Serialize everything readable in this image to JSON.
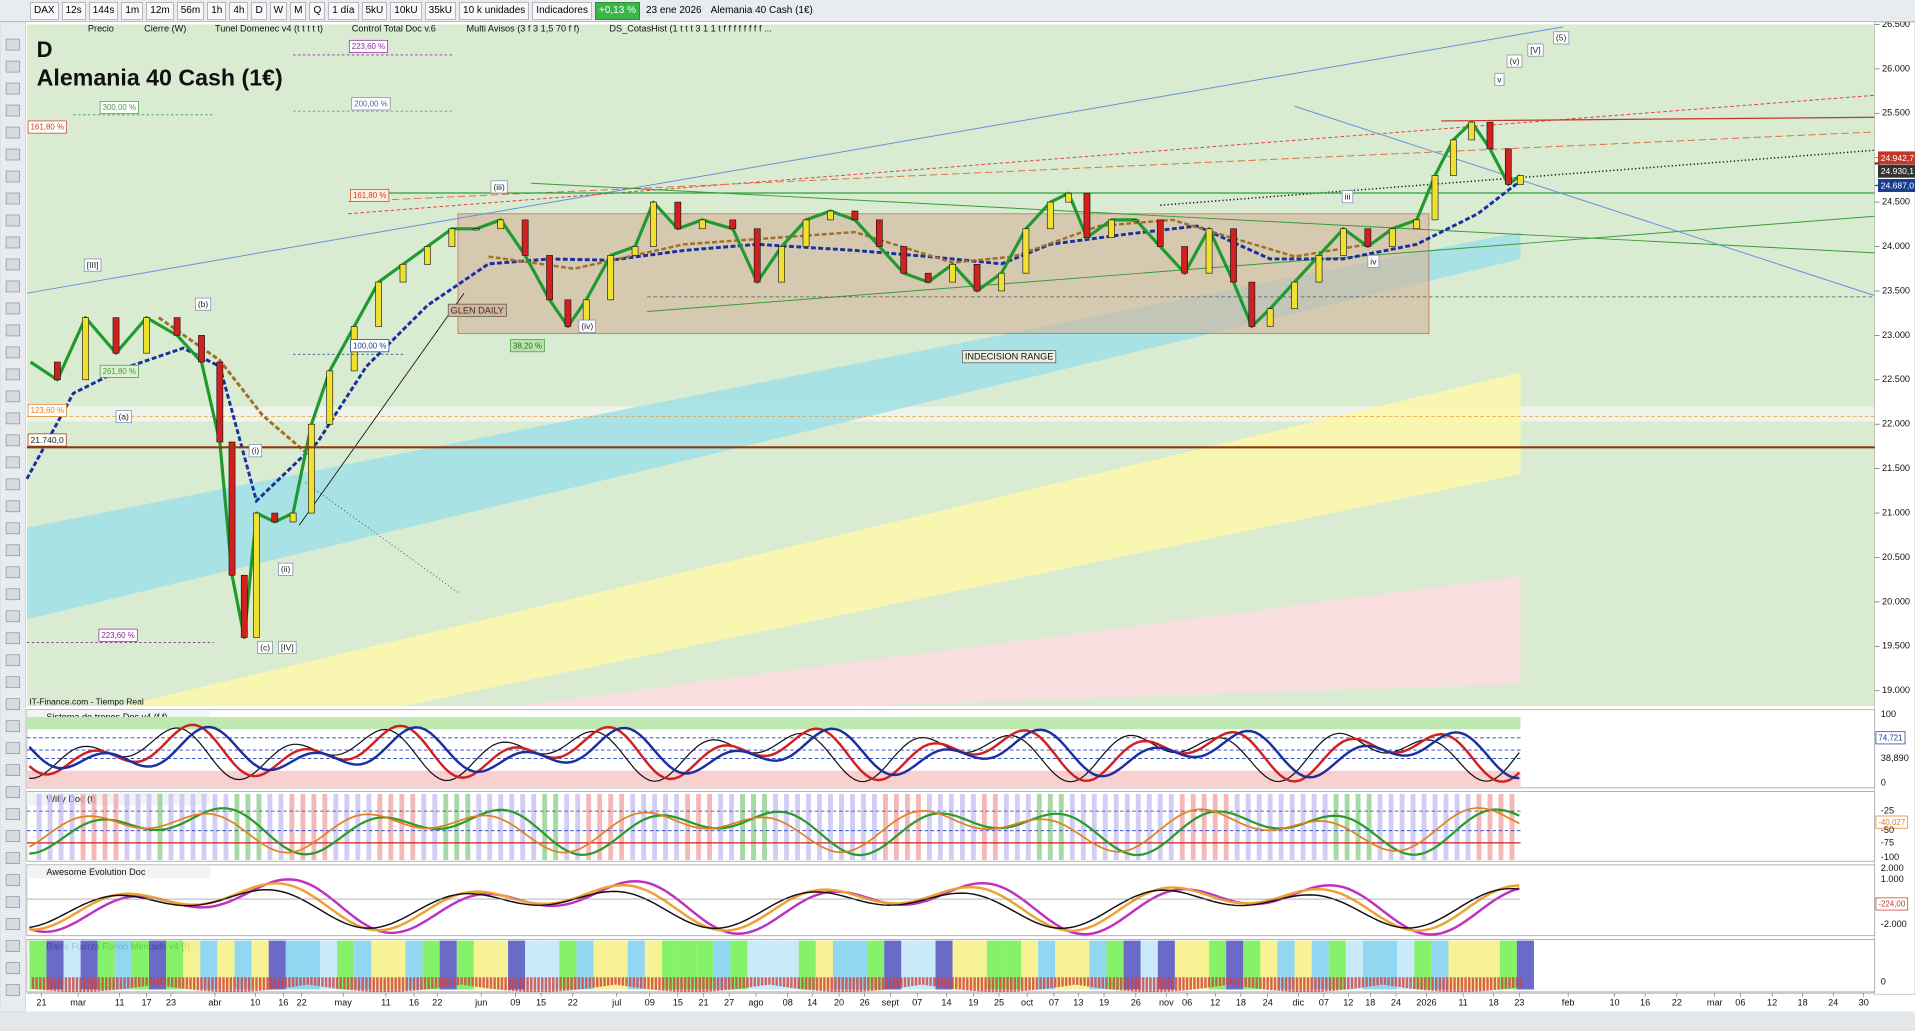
{
  "toolbar": {
    "items": [
      "DAX",
      "12s",
      "144s",
      "1m",
      "12m",
      "56m",
      "1h",
      "4h",
      "D",
      "W",
      "M",
      "Q",
      "1 día",
      "5kU",
      "10kU",
      "35kU",
      "10 k unidades",
      "Indicadores"
    ],
    "change": "+0,13 %",
    "date": "23 ene 2026",
    "symbol_name": "Alemania 40 Cash (1€)"
  },
  "indicator_tabs": [
    "Precio",
    "Cierre (W)",
    "Tunel Domenec v4 (t t t t t)",
    "Control Total Doc v.6",
    "Multi Avisos (3 f 3 1,5 70 f f)",
    "DS_CotasHist (1 t t t 3 1 1 t f f f f f f f f ..."
  ],
  "chart": {
    "timeframe": "D",
    "title": "Alemania 40 Cash (1€)",
    "source": "IT-Finance.com - Tiempo Real",
    "ylim": [
      18800,
      26500
    ],
    "yticks": [
      {
        "value": 19000,
        "label": "19.000"
      },
      {
        "value": 19500,
        "label": "19.500"
      },
      {
        "value": 20000,
        "label": "20.000"
      },
      {
        "value": 20500,
        "label": "20.500"
      },
      {
        "value": 21000,
        "label": "21.000"
      },
      {
        "value": 21500,
        "label": "21.500"
      },
      {
        "value": 22000,
        "label": "22.000"
      },
      {
        "value": 22500,
        "label": "22.500"
      },
      {
        "value": 23000,
        "label": "23.000"
      },
      {
        "value": 23500,
        "label": "23.500"
      },
      {
        "value": 24000,
        "label": "24.000"
      },
      {
        "value": 24500,
        "label": "24.500"
      },
      {
        "value": 25000,
        "label": "25.000"
      },
      {
        "value": 25500,
        "label": "25.500"
      },
      {
        "value": 26000,
        "label": "26.000"
      },
      {
        "value": 26500,
        "label": "26.500"
      }
    ],
    "closes": [
      22700,
      22500,
      23200,
      22800,
      23200,
      23000,
      22700,
      21800,
      20300,
      19600,
      21000,
      20900,
      21000,
      22000,
      22600,
      23100,
      23600,
      23800,
      24000,
      24200,
      24200,
      24300,
      23900,
      23400,
      23100,
      23400,
      23900,
      24000,
      24500,
      24200,
      24300,
      24200,
      23600,
      24000,
      24300,
      24400,
      24300,
      24000,
      23700,
      23600,
      23800,
      23500,
      23700,
      24200,
      24500,
      24600,
      24100,
      24300,
      24300,
      24000,
      23700,
      24200,
      23600,
      23100,
      23300,
      23600,
      23900,
      24200,
      24000,
      24200,
      24300,
      24800,
      25200,
      25400,
      25100,
      24700,
      24800
    ],
    "price_labels": [
      {
        "value": 24942.7,
        "label": "24.942,7"
      },
      {
        "value": 24930.1,
        "label": "24.930,1"
      },
      {
        "value": 24687.0,
        "label": "24.687,0"
      }
    ],
    "level": {
      "value": 21740,
      "label": "21.740,0"
    },
    "annotations": [
      "223,60 %",
      "300,00 %",
      "200,00 %",
      "161,80 %",
      "161,80 %",
      "100,00 %",
      "261,80 %",
      "123,60 %",
      "38,20 %",
      "223,60 %",
      "INDECISION RANGE",
      "GLEN DAILY"
    ],
    "wave_labels": [
      "[III]",
      "(b)",
      "(a)",
      "(i)",
      "(ii)",
      "(c)",
      "[IV]",
      "(iii)",
      "(iv)",
      "v",
      "(v)",
      "[V]",
      "(5)",
      "iii",
      "iv"
    ],
    "x_labels": [
      "21",
      "mar",
      "11",
      "17",
      "23",
      "abr",
      "10",
      "16",
      "22",
      "may",
      "11",
      "16",
      "22",
      "jun",
      "09",
      "15",
      "22",
      "jul",
      "09",
      "15",
      "21",
      "27",
      "ago",
      "08",
      "14",
      "20",
      "26",
      "sept",
      "07",
      "14",
      "19",
      "25",
      "oct",
      "07",
      "13",
      "19",
      "26",
      "nov",
      "06",
      "12",
      "18",
      "24",
      "dic",
      "07",
      "12",
      "18",
      "24",
      "2026",
      "11",
      "18",
      "23",
      "feb",
      "10",
      "16",
      "22",
      "mar",
      "06",
      "12",
      "18",
      "24",
      "30"
    ]
  },
  "panels": [
    {
      "name": "Sistema de trenes Doc v4 (f f)",
      "axis_labels": [
        "100",
        "74,721",
        "38,890",
        "0"
      ]
    },
    {
      "name": "Willy Doc (t)",
      "axis_labels": [
        "-25",
        "-40,027",
        "-50",
        "-75",
        "-100"
      ]
    },
    {
      "name": "Awesome Evolution Doc",
      "axis_labels": [
        "2.000",
        "1.000",
        "-224,00",
        "-2.000"
      ]
    },
    {
      "name": "Barra Fuerza Fondo Mercado v4 (f)",
      "axis_labels": [
        "0"
      ]
    }
  ]
}
